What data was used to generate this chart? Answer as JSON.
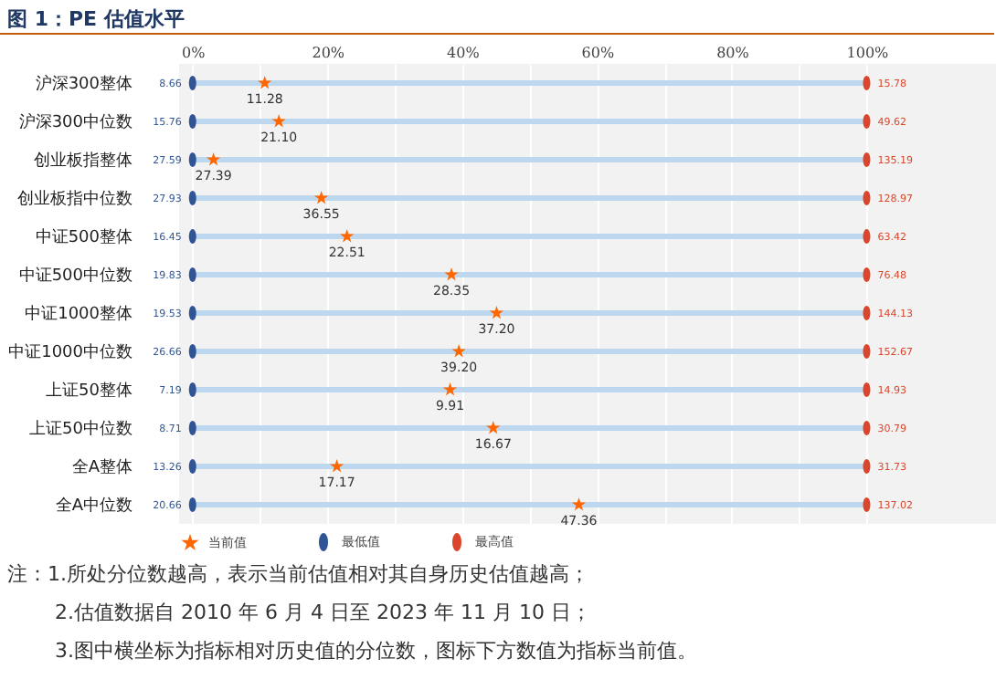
{
  "chart_data": {
    "type": "scatter",
    "title": "图 1：PE 估值水平",
    "orientation": "horizontal",
    "categories": [
      "沪深300整体",
      "沪深300中位数",
      "创业板指整体",
      "创业板指中位数",
      "中证500整体",
      "中证500中位数",
      "中证1000整体",
      "中证1000中位数",
      "上证50整体",
      "上证50中位数",
      "全A整体",
      "全A中位数"
    ],
    "xlim": [
      -2,
      120
    ],
    "xticks": [
      {
        "value": 0,
        "label": "0%"
      },
      {
        "value": 10,
        "label": null
      },
      {
        "value": 20,
        "label": "20%"
      },
      {
        "value": 30,
        "label": null
      },
      {
        "value": 40,
        "label": "40%"
      },
      {
        "value": 50,
        "label": null
      },
      {
        "value": 60,
        "label": "60%"
      },
      {
        "value": 70,
        "label": null
      },
      {
        "value": 80,
        "label": "80%"
      },
      {
        "value": 90,
        "label": null
      },
      {
        "value": 100,
        "label": "100%"
      }
    ],
    "grid": "x",
    "legend": "bottom",
    "series": [
      {
        "type": "bar",
        "color": "#bdd7ee",
        "values": [
          100,
          100,
          100,
          100,
          100,
          100,
          100,
          100,
          100,
          100,
          100,
          100
        ]
      },
      {
        "name": "当前值",
        "color": "#ff6600",
        "marker": "star",
        "values": [
          10.7,
          12.8,
          3.1,
          19.1,
          22.9,
          38.4,
          45.1,
          39.5,
          38.2,
          44.6,
          21.4,
          57.3
        ]
      },
      {
        "name": "最低值",
        "color": "#2f5597",
        "values": [
          0,
          0,
          0,
          0,
          0,
          0,
          0,
          0,
          0,
          0,
          0,
          0
        ]
      },
      {
        "name": "最高值",
        "color": "#d9462b",
        "values": [
          100,
          100,
          100,
          100,
          100,
          100,
          100,
          100,
          100,
          100,
          100,
          100
        ]
      }
    ],
    "annotations": [
      {
        "text": "11.28",
        "x": 10.7,
        "y": "沪深300整体"
      },
      {
        "text": "21.10",
        "x": 12.8,
        "y": "沪深300中位数"
      },
      {
        "text": "27.39",
        "x": 3.1,
        "y": "创业板指整体"
      },
      {
        "text": "36.55",
        "x": 19.1,
        "y": "创业板指中位数"
      },
      {
        "text": "22.51",
        "x": 22.9,
        "y": "中证500整体"
      },
      {
        "text": "28.35",
        "x": 38.4,
        "y": "中证500中位数"
      },
      {
        "text": "37.20",
        "x": 45.1,
        "y": "中证1000整体"
      },
      {
        "text": "39.20",
        "x": 39.5,
        "y": "中证1000中位数"
      },
      {
        "text": "9.91",
        "x": 38.2,
        "y": "上证50整体"
      },
      {
        "text": "16.67",
        "x": 44.6,
        "y": "上证50中位数"
      },
      {
        "text": "17.17",
        "x": 21.4,
        "y": "全A整体"
      },
      {
        "text": "47.36",
        "x": 57.3,
        "y": "全A中位数"
      },
      {
        "text": "8.66",
        "x": 0,
        "y": "沪深300整体"
      },
      {
        "text": "15.76",
        "x": 0,
        "y": "沪深300中位数"
      },
      {
        "text": "27.59",
        "x": 0,
        "y": "创业板指整体"
      },
      {
        "text": "27.93",
        "x": 0,
        "y": "创业板指中位数"
      },
      {
        "text": "16.45",
        "x": 0,
        "y": "中证500整体"
      },
      {
        "text": "19.83",
        "x": 0,
        "y": "中证500中位数"
      },
      {
        "text": "19.53",
        "x": 0,
        "y": "中证1000整体"
      },
      {
        "text": "26.66",
        "x": 0,
        "y": "中证1000中位数"
      },
      {
        "text": "7.19",
        "x": 0,
        "y": "上证50整体"
      },
      {
        "text": "8.71",
        "x": 0,
        "y": "上证50中位数"
      },
      {
        "text": "13.26",
        "x": 0,
        "y": "全A整体"
      },
      {
        "text": "20.66",
        "x": 0,
        "y": "全A中位数"
      },
      {
        "text": "15.78",
        "x": 100,
        "y": "沪深300整体"
      },
      {
        "text": "49.62",
        "x": 100,
        "y": "沪深300中位数"
      },
      {
        "text": "135.19",
        "x": 100,
        "y": "创业板指整体"
      },
      {
        "text": "128.97",
        "x": 100,
        "y": "创业板指中位数"
      },
      {
        "text": "63.42",
        "x": 100,
        "y": "中证500整体"
      },
      {
        "text": "76.48",
        "x": 100,
        "y": "中证500中位数"
      },
      {
        "text": "144.13",
        "x": 100,
        "y": "中证1000整体"
      },
      {
        "text": "152.67",
        "x": 100,
        "y": "中证1000中位数"
      },
      {
        "text": "14.93",
        "x": 100,
        "y": "上证50整体"
      },
      {
        "text": "30.79",
        "x": 100,
        "y": "上证50中位数"
      },
      {
        "text": "31.73",
        "x": 100,
        "y": "全A整体"
      },
      {
        "text": "137.02",
        "x": 100,
        "y": "全A中位数"
      },
      "注：1.所处分位数越高，表示当前估值相对其自身历史估值越高；",
      "2.估值数据自 2010 年 6 月 4 日至 2023 年 11 月 10 日；",
      "3.图中横坐标为指标相对历史值的分位数，图标下方数值为指标当前值。"
    ]
  }
}
